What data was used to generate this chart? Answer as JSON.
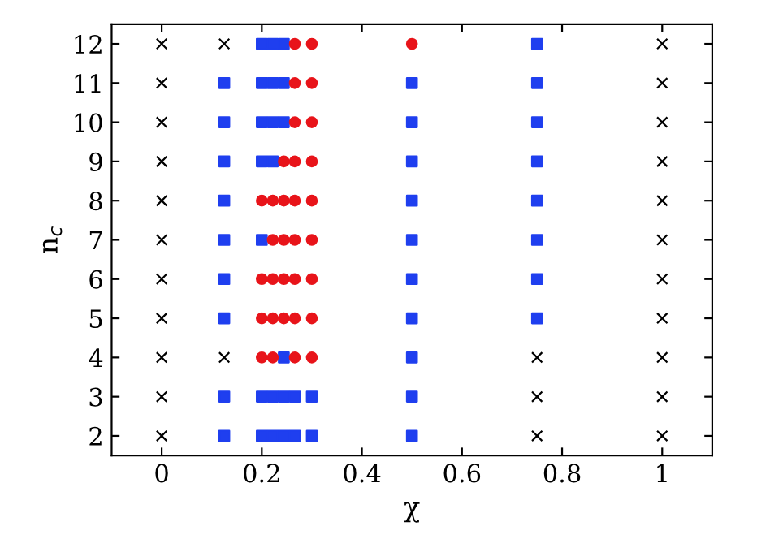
{
  "chart_data": {
    "type": "scatter",
    "xlabel": "χ",
    "ylabel": "n$_{c}$",
    "xlim": [
      -0.1,
      1.1
    ],
    "ylim": [
      1.5,
      12.5
    ],
    "xticks": [
      0,
      0.2,
      0.4,
      0.6,
      0.8,
      1
    ],
    "yticks": [
      2,
      3,
      4,
      5,
      6,
      7,
      8,
      9,
      10,
      11,
      12
    ],
    "grid": false,
    "legend": false,
    "series": [
      {
        "color": "#000000",
        "marker": "cross",
        "x": [
          0,
          0,
          0,
          0,
          0,
          0,
          0,
          0,
          0,
          0,
          0,
          0.125,
          0.125,
          0.75,
          0.75,
          0.75,
          1,
          1,
          1,
          1,
          1,
          1,
          1,
          1,
          1,
          1,
          1
        ],
        "values": [
          2,
          3,
          4,
          5,
          6,
          7,
          8,
          9,
          10,
          11,
          12,
          4,
          12,
          2,
          3,
          4,
          2,
          3,
          4,
          5,
          6,
          7,
          8,
          9,
          10,
          11,
          12
        ]
      },
      {
        "color": "#1f3fef",
        "marker": "square",
        "x": [
          0.125,
          0.125,
          0.125,
          0.125,
          0.125,
          0.125,
          0.125,
          0.125,
          0.125,
          0.2,
          0.222,
          0.244,
          0.266,
          0.2,
          0.222,
          0.244,
          0.266,
          0.244,
          0.2,
          0.2,
          0.222,
          0.2,
          0.222,
          0.244,
          0.2,
          0.222,
          0.244,
          0.2,
          0.222,
          0.244,
          0.3,
          0.3,
          0.5,
          0.5,
          0.5,
          0.5,
          0.5,
          0.5,
          0.5,
          0.5,
          0.5,
          0.5,
          0.75,
          0.75,
          0.75,
          0.75,
          0.75,
          0.75,
          0.75,
          0.75
        ],
        "values": [
          2,
          3,
          5,
          6,
          7,
          8,
          9,
          10,
          11,
          2,
          2,
          2,
          2,
          3,
          3,
          3,
          3,
          4,
          7,
          9,
          9,
          10,
          10,
          10,
          11,
          11,
          11,
          12,
          12,
          12,
          2,
          3,
          2,
          3,
          4,
          5,
          6,
          7,
          8,
          9,
          10,
          11,
          5,
          6,
          7,
          8,
          9,
          10,
          11,
          12
        ]
      },
      {
        "color": "#e8141a",
        "marker": "circle",
        "x": [
          0.2,
          0.222,
          0.266,
          0.3,
          0.2,
          0.222,
          0.244,
          0.266,
          0.3,
          0.2,
          0.222,
          0.244,
          0.266,
          0.3,
          0.222,
          0.244,
          0.266,
          0.3,
          0.2,
          0.222,
          0.244,
          0.266,
          0.3,
          0.244,
          0.266,
          0.3,
          0.266,
          0.3,
          0.266,
          0.3,
          0.266,
          0.3,
          0.5
        ],
        "values": [
          4,
          4,
          4,
          4,
          5,
          5,
          5,
          5,
          5,
          6,
          6,
          6,
          6,
          6,
          7,
          7,
          7,
          7,
          8,
          8,
          8,
          8,
          8,
          9,
          9,
          9,
          10,
          10,
          11,
          11,
          12,
          12,
          12
        ]
      }
    ]
  }
}
